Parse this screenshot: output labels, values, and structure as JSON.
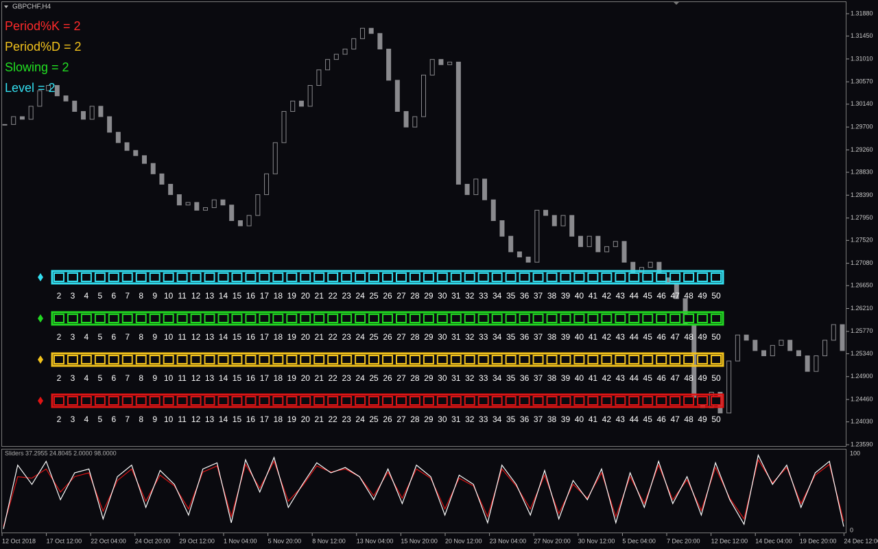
{
  "window": {
    "title": "GBPCHF,H4"
  },
  "parameters": [
    {
      "text": "Period%K = 2",
      "color": "#ff2a2a"
    },
    {
      "text": "Period%D = 2",
      "color": "#f2c21c"
    },
    {
      "text": "Slowing = 2",
      "color": "#22e022"
    },
    {
      "text": "Level = 2",
      "color": "#33dff0"
    }
  ],
  "sliders": {
    "scale": [
      2,
      3,
      4,
      5,
      6,
      7,
      8,
      9,
      10,
      11,
      12,
      13,
      14,
      15,
      16,
      17,
      18,
      19,
      20,
      21,
      22,
      23,
      24,
      25,
      26,
      27,
      28,
      29,
      30,
      31,
      32,
      33,
      34,
      35,
      36,
      37,
      38,
      39,
      40,
      41,
      42,
      43,
      44,
      45,
      46,
      47,
      48,
      49,
      50
    ],
    "rows": [
      {
        "color": "#33dff0"
      },
      {
        "color": "#22d822"
      },
      {
        "color": "#f2c21c"
      },
      {
        "color": "#e01414"
      }
    ]
  },
  "price_axis": {
    "ylim": [
      1.23564,
      1.32104
    ],
    "ticks": [
      {
        "value": 1.3188,
        "label": "1.31880"
      },
      {
        "value": 1.3145,
        "label": "1.31450"
      },
      {
        "value": 1.3101,
        "label": "1.31010"
      },
      {
        "value": 1.3057,
        "label": "1.30570"
      },
      {
        "value": 1.3014,
        "label": "1.30140"
      },
      {
        "value": 1.297,
        "label": "1.29700"
      },
      {
        "value": 1.2926,
        "label": "1.29260"
      },
      {
        "value": 1.2883,
        "label": "1.28830"
      },
      {
        "value": 1.2839,
        "label": "1.28390"
      },
      {
        "value": 1.2795,
        "label": "1.27950"
      },
      {
        "value": 1.2752,
        "label": "1.27520"
      },
      {
        "value": 1.2708,
        "label": "1.27080"
      },
      {
        "value": 1.2665,
        "label": "1.26650"
      },
      {
        "value": 1.2621,
        "label": "1.26210"
      },
      {
        "value": 1.2577,
        "label": "1.25770"
      },
      {
        "value": 1.2534,
        "label": "1.25340"
      },
      {
        "value": 1.249,
        "label": "1.24900"
      },
      {
        "value": 1.2446,
        "label": "1.24460"
      },
      {
        "value": 1.2403,
        "label": "1.24030"
      },
      {
        "value": 1.2359,
        "label": "1.23590"
      }
    ]
  },
  "candles": {
    "color": "#8a8a8e",
    "closes": [
      1.2975,
      1.299,
      1.2985,
      1.301,
      1.304,
      1.305,
      1.303,
      1.302,
      1.3,
      1.2985,
      1.301,
      1.299,
      1.296,
      1.294,
      1.2925,
      1.2915,
      1.29,
      1.288,
      1.286,
      1.284,
      1.282,
      1.2825,
      1.281,
      1.2815,
      1.283,
      1.282,
      1.279,
      1.278,
      1.28,
      1.284,
      1.288,
      1.294,
      1.3,
      1.302,
      1.301,
      1.305,
      1.308,
      1.31,
      1.311,
      1.312,
      1.314,
      1.316,
      1.315,
      1.312,
      1.306,
      1.3,
      1.297,
      1.299,
      1.307,
      1.31,
      1.309,
      1.3095,
      1.286,
      1.284,
      1.287,
      1.283,
      1.279,
      1.276,
      1.273,
      1.272,
      1.271,
      1.281,
      1.28,
      1.278,
      1.28,
      1.276,
      1.274,
      1.276,
      1.273,
      1.274,
      1.275,
      1.271,
      1.269,
      1.27,
      1.271,
      1.268,
      1.267,
      1.264,
      1.259,
      1.245,
      1.243,
      1.246,
      1.242,
      1.252,
      1.257,
      1.256,
      1.254,
      1.253,
      1.255,
      1.256,
      1.254,
      1.253,
      1.25,
      1.253,
      1.256,
      1.259,
      1.254
    ]
  },
  "indicator": {
    "label": "Sliders 37.2955 24.8045 2.0000 98.0000",
    "ylim": [
      0,
      100
    ],
    "ticks": [
      100,
      0
    ],
    "series": [
      {
        "color": "#ffffff",
        "values": [
          2,
          85,
          60,
          90,
          40,
          75,
          80,
          15,
          70,
          85,
          30,
          78,
          60,
          20,
          80,
          88,
          10,
          92,
          50,
          95,
          30,
          60,
          88,
          75,
          82,
          70,
          40,
          80,
          35,
          85,
          70,
          20,
          72,
          60,
          10,
          85,
          60,
          20,
          78,
          15,
          65,
          40,
          80,
          10,
          75,
          30,
          90,
          35,
          70,
          20,
          88,
          40,
          8,
          98,
          60,
          85,
          30,
          75,
          90,
          5
        ]
      },
      {
        "color": "#e01414",
        "values": [
          5,
          70,
          68,
          80,
          50,
          70,
          75,
          25,
          65,
          80,
          38,
          72,
          58,
          28,
          76,
          84,
          18,
          86,
          55,
          90,
          38,
          58,
          84,
          76,
          80,
          70,
          45,
          76,
          42,
          80,
          68,
          28,
          68,
          58,
          18,
          80,
          58,
          28,
          72,
          22,
          60,
          42,
          75,
          18,
          70,
          35,
          85,
          40,
          66,
          26,
          82,
          42,
          15,
          92,
          62,
          82,
          35,
          72,
          86,
          12
        ]
      }
    ]
  },
  "time_axis": [
    "12 Oct 2018",
    "17 Oct 12:00",
    "22 Oct 04:00",
    "24 Oct 20:00",
    "29 Oct 12:00",
    "1 Nov 04:00",
    "5 Nov 20:00",
    "8 Nov 12:00",
    "13 Nov 04:00",
    "15 Nov 20:00",
    "20 Nov 12:00",
    "23 Nov 04:00",
    "27 Nov 20:00",
    "30 Nov 12:00",
    "5 Dec 04:00",
    "7 Dec 20:00",
    "12 Dec 12:00",
    "14 Dec 04:00",
    "19 Dec 20:00",
    "24 Dec 12:00"
  ]
}
